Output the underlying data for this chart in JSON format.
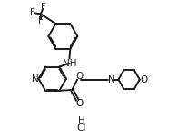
{
  "background_color": "#ffffff",
  "line_color": "#1a1a1a",
  "line_width": 1.4,
  "text_color": "#1a1a1a",
  "font_size": 7.5,
  "figsize": [
    2.07,
    1.52
  ],
  "dpi": 100,
  "xlim": [
    0,
    10.5
  ],
  "ylim": [
    0,
    7.8
  ]
}
